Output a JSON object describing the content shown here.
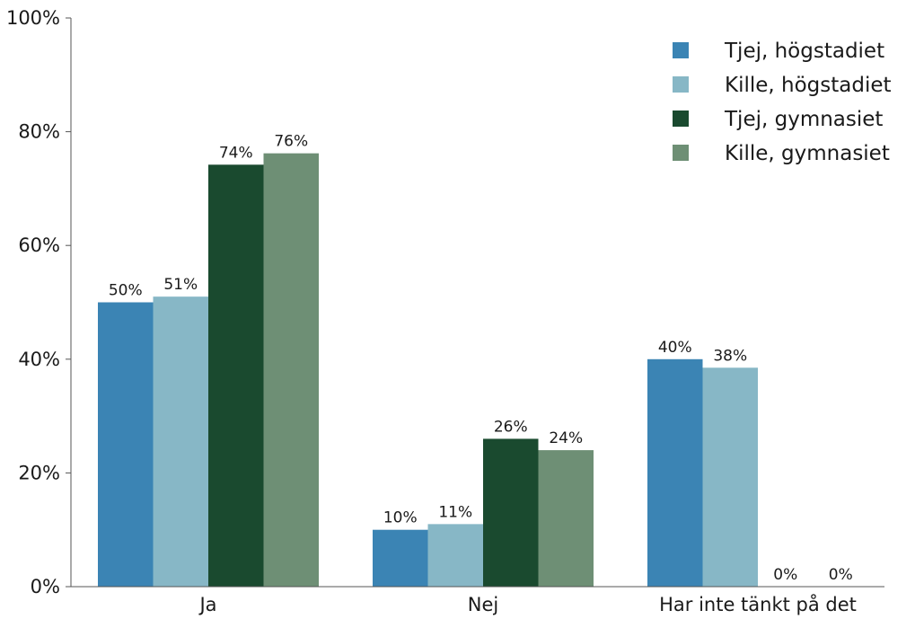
{
  "chart_data": {
    "type": "bar",
    "categories": [
      "Ja",
      "Nej",
      "Har inte tänkt på det"
    ],
    "series": [
      {
        "name": "Tjej, högstadiet",
        "values": [
          50,
          10,
          40
        ],
        "labels": [
          "50%",
          "10%",
          "40%"
        ],
        "color": "#3b84b4"
      },
      {
        "name": "Kille, högstadiet",
        "values": [
          51,
          11,
          38.5
        ],
        "labels": [
          "51%",
          "11%",
          "38%"
        ],
        "color": "#87b7c6"
      },
      {
        "name": "Tjej, gymnasiet",
        "values": [
          74.2,
          26,
          0
        ],
        "labels": [
          "74%",
          "26%",
          "0%"
        ],
        "color": "#1a4a2f"
      },
      {
        "name": "Kille, gymnasiet",
        "values": [
          76.2,
          24,
          0
        ],
        "labels": [
          "76%",
          "24%",
          "0%"
        ],
        "color": "#6e8f75"
      }
    ],
    "y_ticks": [
      "0%",
      "20%",
      "40%",
      "60%",
      "80%",
      "100%"
    ],
    "ylim": [
      0,
      100
    ],
    "title": "",
    "xlabel": "",
    "ylabel": "",
    "grid": false,
    "legend_position": "top-right"
  }
}
